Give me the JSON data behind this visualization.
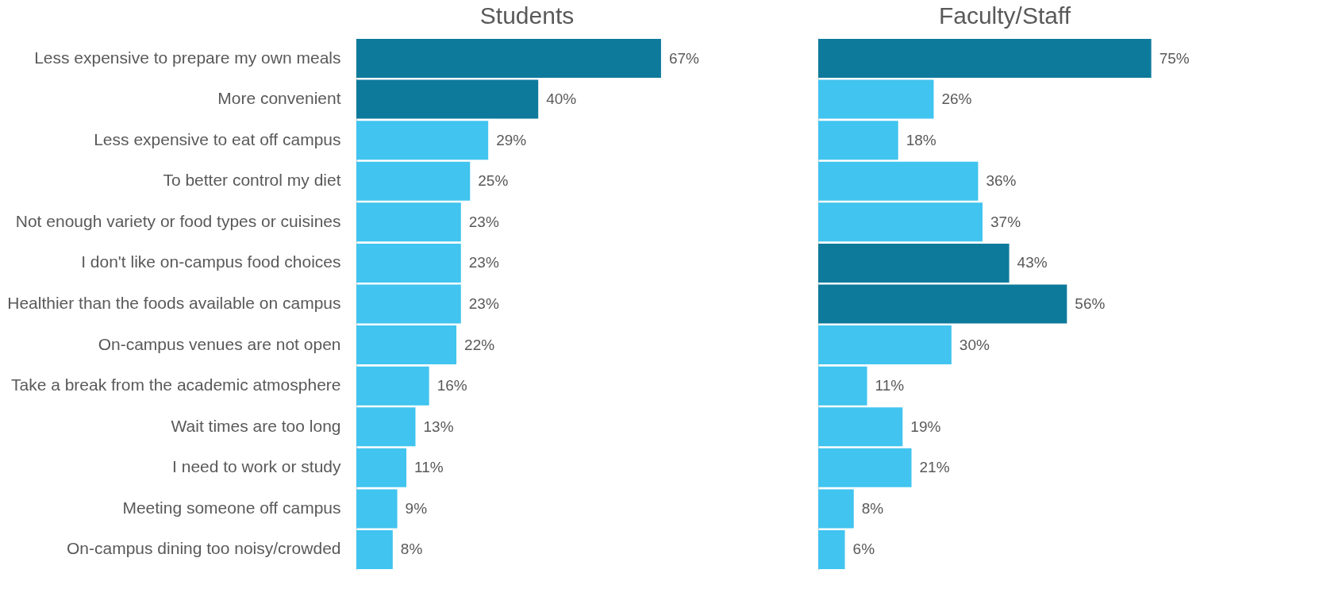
{
  "chart_data": [
    {
      "type": "bar",
      "orientation": "horizontal",
      "title": "Students",
      "tick_labels": "y",
      "categories": [
        "Less expensive to prepare my own meals",
        "More convenient",
        "Less expensive to eat off campus",
        "To better control my diet",
        "Not enough variety or food types or cuisines",
        "I don't like on-campus food choices",
        "Healthier than the foods available on campus",
        "On-campus venues are not open",
        "Take a break from the academic atmosphere",
        "Wait times are too long",
        "I need to work or study",
        "Meeting someone off campus",
        "On-campus dining too noisy/crowded"
      ],
      "values": [
        67,
        40,
        29,
        25,
        23,
        23,
        23,
        22,
        16,
        13,
        11,
        9,
        8
      ],
      "value_labels": [
        "67%",
        "40%",
        "29%",
        "25%",
        "23%",
        "23%",
        "23%",
        "22%",
        "16%",
        "13%",
        "11%",
        "9%",
        "8%"
      ],
      "colors": [
        "#0e7a9b",
        "#0e7a9b",
        "#41c4ef",
        "#41c4ef",
        "#41c4ef",
        "#41c4ef",
        "#41c4ef",
        "#41c4ef",
        "#41c4ef",
        "#41c4ef",
        "#41c4ef",
        "#41c4ef",
        "#41c4ef"
      ]
    },
    {
      "type": "bar",
      "orientation": "horizontal",
      "title": "Faculty/Staff",
      "tick_labels": false,
      "categories": [
        null,
        null,
        null,
        null,
        null,
        null,
        null,
        null,
        null,
        null,
        null,
        null,
        null
      ],
      "values": [
        75,
        26,
        18,
        36,
        37,
        43,
        56,
        30,
        11,
        19,
        21,
        8,
        6
      ],
      "value_labels": [
        "75%",
        "26%",
        "18%",
        "36%",
        "37%",
        "43%",
        "56%",
        "30%",
        "11%",
        "19%",
        "21%",
        "8%",
        "6%"
      ],
      "colors": [
        "#0e7a9b",
        "#41c4ef",
        "#41c4ef",
        "#41c4ef",
        "#41c4ef",
        "#0e7a9b",
        "#0e7a9b",
        "#41c4ef",
        "#41c4ef",
        "#41c4ef",
        "#41c4ef",
        "#41c4ef",
        "#41c4ef"
      ]
    }
  ]
}
